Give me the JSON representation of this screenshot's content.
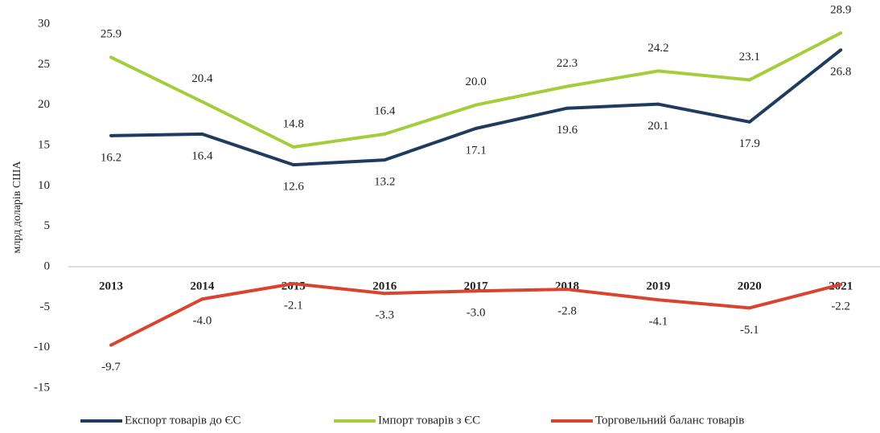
{
  "chart_data": {
    "type": "line",
    "y_label": "млрд доларів США",
    "categories": [
      "2013",
      "2014",
      "2015",
      "2016",
      "2017",
      "2018",
      "2019",
      "2020",
      "2021"
    ],
    "series": [
      {
        "name": "Експорт товарів до ЄС",
        "color": "#1f3b5e",
        "values": [
          16.2,
          16.4,
          12.6,
          13.2,
          17.1,
          19.6,
          20.1,
          17.9,
          26.8
        ],
        "value_labels": [
          "16.2",
          "16.4",
          "12.6",
          "13.2",
          "17.1",
          "19.6",
          "20.1",
          "17.9",
          "26.8"
        ]
      },
      {
        "name": "Імпорт товарів з ЄС",
        "color": "#a3cd3b",
        "values": [
          25.9,
          20.4,
          14.8,
          16.4,
          20.0,
          22.3,
          24.2,
          23.1,
          28.9
        ],
        "value_labels": [
          "25.9",
          "20.4",
          "14.8",
          "16.4",
          "20.0",
          "22.3",
          "24.2",
          "23.1",
          "28.9"
        ]
      },
      {
        "name": "Торговельний баланс товарів",
        "color": "#d9432f",
        "values": [
          -9.7,
          -4.0,
          -2.1,
          -3.3,
          -3.0,
          -2.8,
          -4.1,
          -5.1,
          -2.2
        ],
        "value_labels": [
          "-9.7",
          "-4.0",
          "-2.1",
          "-3.3",
          "-3.0",
          "-2.8",
          "-4.1",
          "-5.1",
          "-2.2"
        ]
      }
    ],
    "ylim": [
      -15,
      30
    ],
    "yticks": [
      -15,
      -10,
      -5,
      0,
      5,
      10,
      15,
      20,
      25,
      30
    ],
    "grid": false,
    "legend": "bottom"
  }
}
